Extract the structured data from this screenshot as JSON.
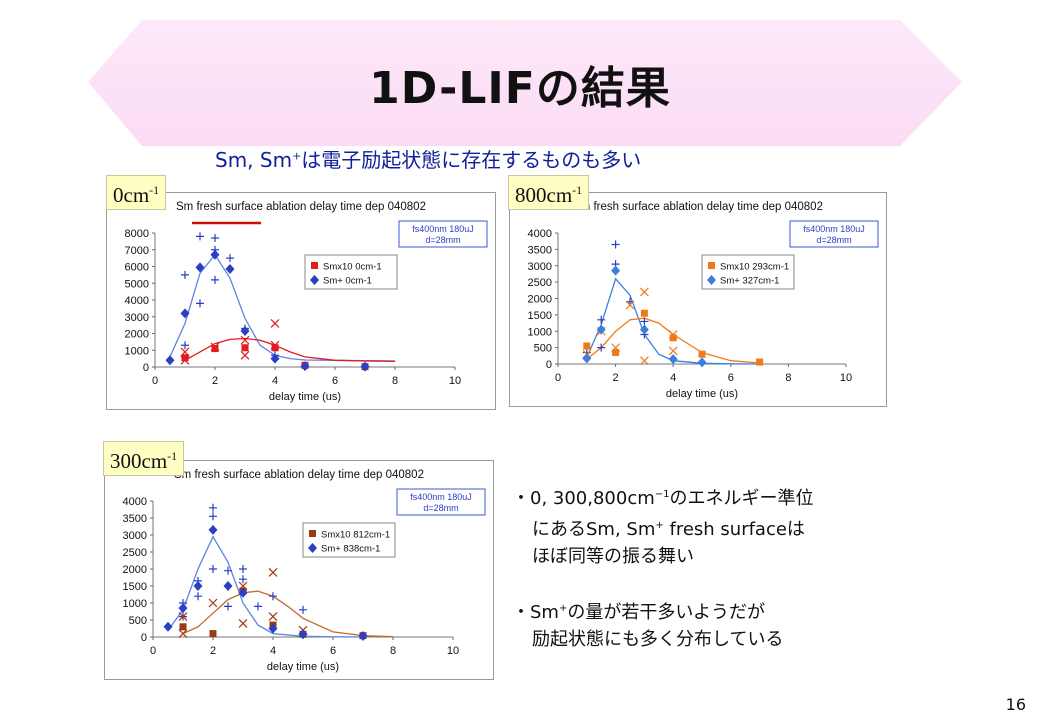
{
  "slide": {
    "title": "1D-LIFの結果",
    "subtitle_pre": "Sm, Sm",
    "subtitle_sup": "+",
    "subtitle_post": "は電子励起状態に存在するものも多い",
    "page_number": "16"
  },
  "chips": [
    {
      "base": "0cm",
      "exp": "-1"
    },
    {
      "base": "800cm",
      "exp": "-1"
    },
    {
      "base": "300cm",
      "exp": "-1"
    }
  ],
  "bullets": {
    "b1_line1_pre": "・0, 300,800cm",
    "b1_line1_sup": "−1",
    "b1_line1_post": "のエネルギー準位",
    "b1_line2_pre": "にあるSm, Sm",
    "b1_line2_sup": "+",
    "b1_line2_post": " fresh surfaceは",
    "b1_line3": "ほぼ同等の振る舞い",
    "b2_line1_pre": "・Sm",
    "b2_line1_sup": "+",
    "b2_line1_post": "の量が若干多いようだが",
    "b2_line2": "励起状態にも多く分布している"
  },
  "colors": {
    "banner": "#fcdcf4",
    "title": "#111111",
    "subtitle": "#10209a",
    "sm_plus": "#2a3fc4",
    "fit_blue": "#5a86e0",
    "chip_bg": "#ffffc4",
    "underline": "#c81010"
  },
  "chart_data": [
    {
      "type": "scatter",
      "title": "Sm fresh surface ablation delay time dep 040802",
      "title_prefix": "Sm ",
      "title_underlined": "fresh surface",
      "title_suffix": " ablation delay time dep 040802",
      "annotation": [
        "fs400nm 180uJ",
        "d=28mm"
      ],
      "xlabel": "delay time (us)",
      "xlim": [
        0,
        10
      ],
      "ylim": [
        0,
        8000
      ],
      "xticks": [
        0,
        2,
        4,
        6,
        8,
        10
      ],
      "yticks": [
        0,
        1000,
        2000,
        3000,
        4000,
        5000,
        6000,
        7000,
        8000
      ],
      "series": [
        {
          "name": "Smx10 0cm-1",
          "marker": "square",
          "color": "#e01c1c",
          "x": [
            1,
            2,
            3,
            4,
            5,
            7
          ],
          "y": [
            550,
            1100,
            1150,
            1150,
            100,
            20
          ]
        },
        {
          "name": "Sm+ 0cm-1",
          "marker": "diamond",
          "color": "#2a3fc4",
          "x": [
            0.5,
            1,
            1.5,
            2,
            2.5,
            3,
            4,
            5,
            7
          ],
          "y": [
            400,
            3200,
            5950,
            6700,
            5850,
            2150,
            500,
            50,
            20
          ]
        }
      ],
      "scatter_plus": {
        "color": "#2a3fc4",
        "x": [
          1,
          1,
          1.5,
          1.5,
          2,
          2,
          2,
          2.5,
          3,
          4
        ],
        "y": [
          5500,
          1300,
          7800,
          3800,
          7700,
          7000,
          5200,
          6500,
          2300,
          700
        ]
      },
      "scatter_x": {
        "color": "#e01c1c",
        "x": [
          1,
          1,
          2,
          3,
          3,
          4,
          4
        ],
        "y": [
          900,
          400,
          1200,
          1600,
          700,
          2600,
          1300
        ]
      },
      "fits": [
        {
          "color": "#5a86e0",
          "x": [
            0.5,
            1,
            1.5,
            2,
            2.5,
            3,
            3.5,
            4,
            4.5,
            5,
            6,
            7,
            8
          ],
          "y": [
            600,
            2600,
            5600,
            6700,
            5300,
            2900,
            1300,
            700,
            500,
            420,
            400,
            380,
            360
          ]
        },
        {
          "color": "#e01c1c",
          "x": [
            1,
            1.5,
            2,
            2.5,
            3,
            3.5,
            4,
            4.5,
            5,
            6,
            7,
            8
          ],
          "y": [
            400,
            900,
            1400,
            1650,
            1700,
            1600,
            1300,
            900,
            600,
            400,
            360,
            340
          ]
        }
      ]
    },
    {
      "type": "scatter",
      "title": "Sm fresh surface ablation delay time dep 040802",
      "title_prefix": "Sm fresh surface ablation delay time dep 040802",
      "title_underlined": "",
      "title_suffix": "",
      "annotation": [
        "fs400nm 180uJ",
        "d=28mm"
      ],
      "xlabel": "delay time (us)",
      "xlim": [
        0,
        10
      ],
      "ylim": [
        0,
        4000
      ],
      "xticks": [
        0,
        2,
        4,
        6,
        8,
        10
      ],
      "yticks": [
        0,
        500,
        1000,
        1500,
        2000,
        2500,
        3000,
        3500,
        4000
      ],
      "series": [
        {
          "name": "Smx10 293cm-1",
          "marker": "square",
          "color": "#f07a1a",
          "x": [
            1,
            2,
            3,
            4,
            5,
            7
          ],
          "y": [
            550,
            350,
            1550,
            800,
            300,
            60
          ]
        },
        {
          "name": "Sm+ 327cm-1",
          "marker": "diamond",
          "color": "#3a7fe0",
          "x": [
            1,
            1.5,
            2,
            3,
            4,
            5
          ],
          "y": [
            170,
            1050,
            2850,
            1050,
            150,
            50
          ]
        }
      ],
      "scatter_plus": {
        "color": "#2a3fc4",
        "x": [
          1,
          1.5,
          1.5,
          2,
          2,
          2.5,
          3,
          3
        ],
        "y": [
          350,
          1350,
          500,
          3650,
          3050,
          1900,
          1300,
          900
        ]
      },
      "scatter_x": {
        "color": "#f07a1a",
        "x": [
          1,
          1.5,
          2,
          2.5,
          3,
          3,
          4,
          4
        ],
        "y": [
          300,
          1000,
          500,
          1800,
          2200,
          100,
          400,
          900
        ]
      },
      "fits": [
        {
          "color": "#3a7fe0",
          "x": [
            1,
            1.5,
            2,
            2.5,
            3,
            3.5,
            4,
            5,
            6,
            7
          ],
          "y": [
            200,
            1200,
            2600,
            2100,
            900,
            300,
            100,
            20,
            5,
            0
          ]
        },
        {
          "color": "#f07a1a",
          "x": [
            1,
            1.5,
            2,
            2.5,
            3,
            3.5,
            4,
            5,
            6,
            7
          ],
          "y": [
            150,
            500,
            1000,
            1350,
            1400,
            1250,
            900,
            350,
            100,
            30
          ]
        }
      ]
    },
    {
      "type": "scatter",
      "title": "Sm fresh surface ablation delay time dep 040802",
      "title_prefix": "Sm fresh surface ablation delay time dep 040802",
      "title_underlined": "",
      "title_suffix": "",
      "annotation": [
        "fs400nm 180uJ",
        "d=28mm"
      ],
      "xlabel": "delay time (us)",
      "xlim": [
        0,
        10
      ],
      "ylim": [
        0,
        4000
      ],
      "xticks": [
        0,
        2,
        4,
        6,
        8,
        10
      ],
      "yticks": [
        0,
        500,
        1000,
        1500,
        2000,
        2500,
        3000,
        3500,
        4000
      ],
      "series": [
        {
          "name": "Smx10 812cm-1",
          "marker": "square",
          "color": "#9a3a10",
          "x": [
            1,
            2,
            3,
            4,
            5,
            7
          ],
          "y": [
            300,
            100,
            1350,
            350,
            80,
            40
          ]
        },
        {
          "name": "Sm+ 838cm-1",
          "marker": "diamond",
          "color": "#2a3fc4",
          "x": [
            0.5,
            1,
            1.5,
            2,
            2.5,
            3,
            4,
            5,
            7
          ],
          "y": [
            300,
            850,
            1500,
            3150,
            1500,
            1300,
            250,
            80,
            30
          ]
        }
      ],
      "scatter_plus": {
        "color": "#2a3fc4",
        "x": [
          1,
          1,
          1.5,
          1.5,
          2,
          2,
          2,
          2.5,
          2.5,
          3,
          3,
          3.5,
          4,
          5
        ],
        "y": [
          1000,
          600,
          1650,
          1200,
          3800,
          3550,
          2000,
          1950,
          900,
          2000,
          1700,
          900,
          1200,
          800
        ]
      },
      "scatter_x": {
        "color": "#9a3a10",
        "x": [
          1,
          1,
          2,
          3,
          3,
          4,
          4,
          5
        ],
        "y": [
          600,
          100,
          1000,
          1500,
          400,
          1900,
          600,
          200
        ]
      },
      "fits": [
        {
          "color": "#5a86e0",
          "x": [
            0.5,
            1,
            1.5,
            2,
            2.5,
            3,
            3.5,
            4,
            5,
            6,
            7
          ],
          "y": [
            200,
            800,
            2000,
            2950,
            2200,
            1000,
            350,
            100,
            20,
            5,
            0
          ]
        },
        {
          "color": "#c06a30",
          "x": [
            1,
            1.5,
            2,
            2.5,
            3,
            3.5,
            4,
            4.5,
            5,
            6,
            7,
            8
          ],
          "y": [
            100,
            300,
            700,
            1100,
            1300,
            1350,
            1200,
            900,
            550,
            150,
            40,
            10
          ]
        }
      ]
    }
  ]
}
